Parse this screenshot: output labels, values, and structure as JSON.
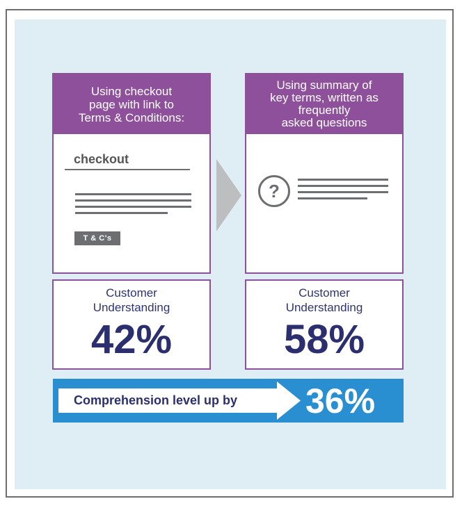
{
  "left_card": {
    "heading": "Using checkout\npage with link to\nTerms & Conditions:",
    "checkout_label": "checkout",
    "badge": "T & C's"
  },
  "right_card": {
    "heading": "Using summary of\nkey terms, written as\nfrequently\nasked questions",
    "icon_glyph": "?",
    "icon_name": "question-mark-icon"
  },
  "left_stat": {
    "label": "Customer\nUnderstanding",
    "value": "42%"
  },
  "right_stat": {
    "label": "Customer\nUnderstanding",
    "value": "58%"
  },
  "banner": {
    "text": "Comprehension level up by",
    "value": "36%"
  },
  "colors": {
    "purple": "#8e4f9b",
    "navy": "#2b2f6f",
    "blue": "#2a8fd0",
    "gray": "#6d6e71",
    "background": "#dfeef4"
  }
}
